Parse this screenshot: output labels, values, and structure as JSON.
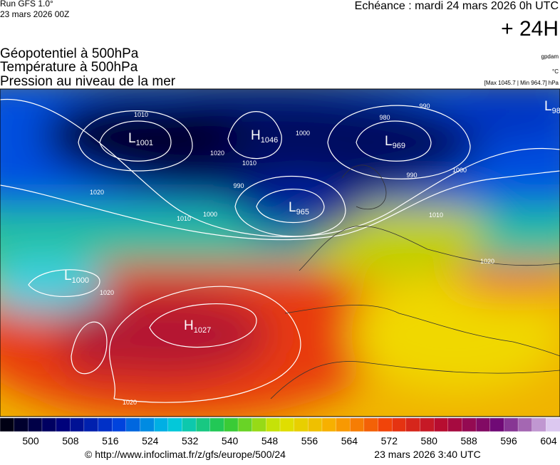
{
  "header": {
    "run": "Run GFS 1.0°",
    "run_date": "23 mars 2026 00Z",
    "valid": "Echéance : mardi 24 mars 2026 0h UTC",
    "lead": "+ 24H",
    "title_lines": [
      "Géopotentiel à 500hPa",
      "Température à 500hPa",
      "Pression au niveau de la mer"
    ],
    "units": [
      "gpdam",
      "°C",
      "[Max 1045.7 | Min 964.7] hPa"
    ]
  },
  "centers": [
    {
      "letter": "L",
      "value": "1001"
    },
    {
      "letter": "H",
      "value": "1046"
    },
    {
      "letter": "L",
      "value": "969"
    },
    {
      "letter": "L",
      "value": "965"
    },
    {
      "letter": "L",
      "value": "1000"
    },
    {
      "letter": "H",
      "value": "1027"
    },
    {
      "letter": "L",
      "value": "98"
    }
  ],
  "isobar_labels": [
    "1010",
    "1020",
    "1020",
    "1010",
    "1000",
    "990",
    "1010",
    "1000",
    "980",
    "990",
    "990",
    "1000",
    "1010",
    "1020",
    "1020",
    "1020"
  ],
  "colorbar": {
    "ticks": [
      500,
      508,
      516,
      524,
      532,
      540,
      548,
      556,
      564,
      572,
      580,
      588,
      596,
      604
    ]
  },
  "footer": {
    "url": "© http://www.infoclimat.fr/z/gfs/europe/500/24",
    "date": "23 mars 2026  3:40 UTC"
  }
}
